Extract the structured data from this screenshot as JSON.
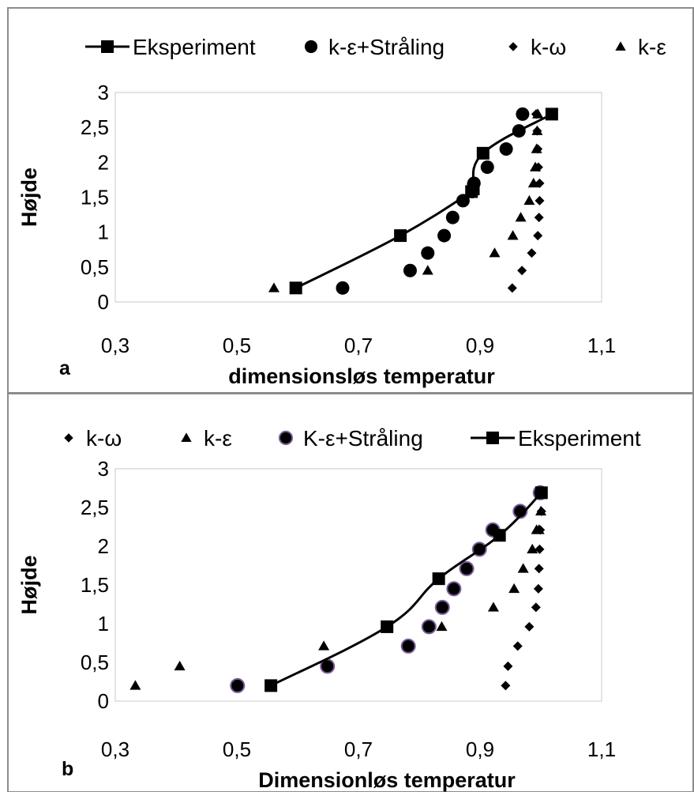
{
  "chart_data": [
    {
      "type": "scatter",
      "panel_label": "a",
      "xlabel": "dimensionsløs temperatur",
      "ylabel": "Højde",
      "xlim": [
        0.3,
        1.1
      ],
      "ylim": [
        0,
        3
      ],
      "x_ticks": [
        "0,3",
        "0,5",
        "0,7",
        "0,9",
        "1,1"
      ],
      "y_ticks": [
        "0",
        "0,5",
        "1",
        "1,5",
        "2",
        "2,5",
        "3"
      ],
      "grid": false,
      "legend_position": "top",
      "series": [
        {
          "name": "Eksperiment",
          "marker": "square",
          "line": true,
          "x": [
            0.597,
            0.769,
            0.886,
            0.889,
            0.905,
            1.018
          ],
          "y": [
            0.2,
            0.95,
            1.58,
            1.62,
            2.13,
            2.69
          ]
        },
        {
          "name": "k-ε+Stråling",
          "marker": "circle",
          "line": false,
          "x": [
            0.674,
            0.785,
            0.814,
            0.841,
            0.855,
            0.872,
            0.887,
            0.89,
            0.912,
            0.943,
            0.964,
            0.97
          ],
          "y": [
            0.2,
            0.45,
            0.7,
            0.95,
            1.21,
            1.45,
            1.58,
            1.7,
            1.93,
            2.19,
            2.45,
            2.69
          ]
        },
        {
          "name": "k-ω",
          "marker": "diamond",
          "line": false,
          "x": [
            0.953,
            0.969,
            0.985,
            0.995,
            0.997,
            0.998,
            0.998,
            0.996,
            0.995,
            0.994,
            0.993,
            0.992
          ],
          "y": [
            0.2,
            0.45,
            0.7,
            0.95,
            1.21,
            1.45,
            1.7,
            1.93,
            2.19,
            2.45,
            2.69,
            2.69
          ]
        },
        {
          "name": "k-ε",
          "marker": "triangle",
          "line": false,
          "x": [
            0.561,
            0.814,
            0.924,
            0.954,
            0.967,
            0.981,
            0.988,
            0.991,
            0.993,
            0.994,
            0.995,
            0.995
          ],
          "y": [
            0.2,
            0.45,
            0.7,
            0.95,
            1.21,
            1.45,
            1.7,
            1.93,
            2.19,
            2.45,
            2.69,
            2.69
          ]
        }
      ]
    },
    {
      "type": "scatter",
      "panel_label": "b",
      "xlabel": "Dimensionløs temperatur",
      "ylabel": "Højde",
      "xlim": [
        0.3,
        1.1
      ],
      "ylim": [
        0,
        3
      ],
      "x_ticks": [
        "0,3",
        "0,5",
        "0,7",
        "0,9",
        "1,1"
      ],
      "y_ticks": [
        "0",
        "0,5",
        "1",
        "1,5",
        "2",
        "2,5",
        "3"
      ],
      "grid": false,
      "legend_position": "top",
      "series": [
        {
          "name": "k-ω",
          "marker": "diamond",
          "line": false,
          "x": [
            0.942,
            0.946,
            0.962,
            0.981,
            0.992,
            0.996,
            0.997,
            0.998,
            0.999,
            1.001,
            1.0
          ],
          "y": [
            0.2,
            0.45,
            0.71,
            0.96,
            1.21,
            1.45,
            1.71,
            1.96,
            2.21,
            2.45,
            2.69
          ]
        },
        {
          "name": "k-ε",
          "marker": "triangle",
          "line": false,
          "x": [
            0.333,
            0.406,
            0.643,
            0.837,
            0.922,
            0.956,
            0.971,
            0.986,
            0.993,
            0.997,
            1.0,
            1.0
          ],
          "y": [
            0.2,
            0.45,
            0.71,
            0.96,
            1.21,
            1.45,
            1.71,
            1.96,
            2.21,
            2.21,
            2.45,
            2.69
          ]
        },
        {
          "name": "K-ε+Stråling",
          "marker": "circle",
          "line": false,
          "marker_color": "#000000",
          "marker_edge": "#7a5c9a",
          "x": [
            0.501,
            0.649,
            0.782,
            0.816,
            0.838,
            0.857,
            0.878,
            0.899,
            0.921,
            0.966,
            0.999
          ],
          "y": [
            0.2,
            0.45,
            0.71,
            0.96,
            1.21,
            1.45,
            1.71,
            1.96,
            2.21,
            2.45,
            2.69
          ]
        },
        {
          "name": "Eksperiment",
          "marker": "square",
          "line": true,
          "x": [
            0.556,
            0.747,
            0.832,
            0.932,
            1.001
          ],
          "y": [
            0.2,
            0.96,
            1.58,
            2.14,
            2.69
          ]
        }
      ]
    }
  ]
}
